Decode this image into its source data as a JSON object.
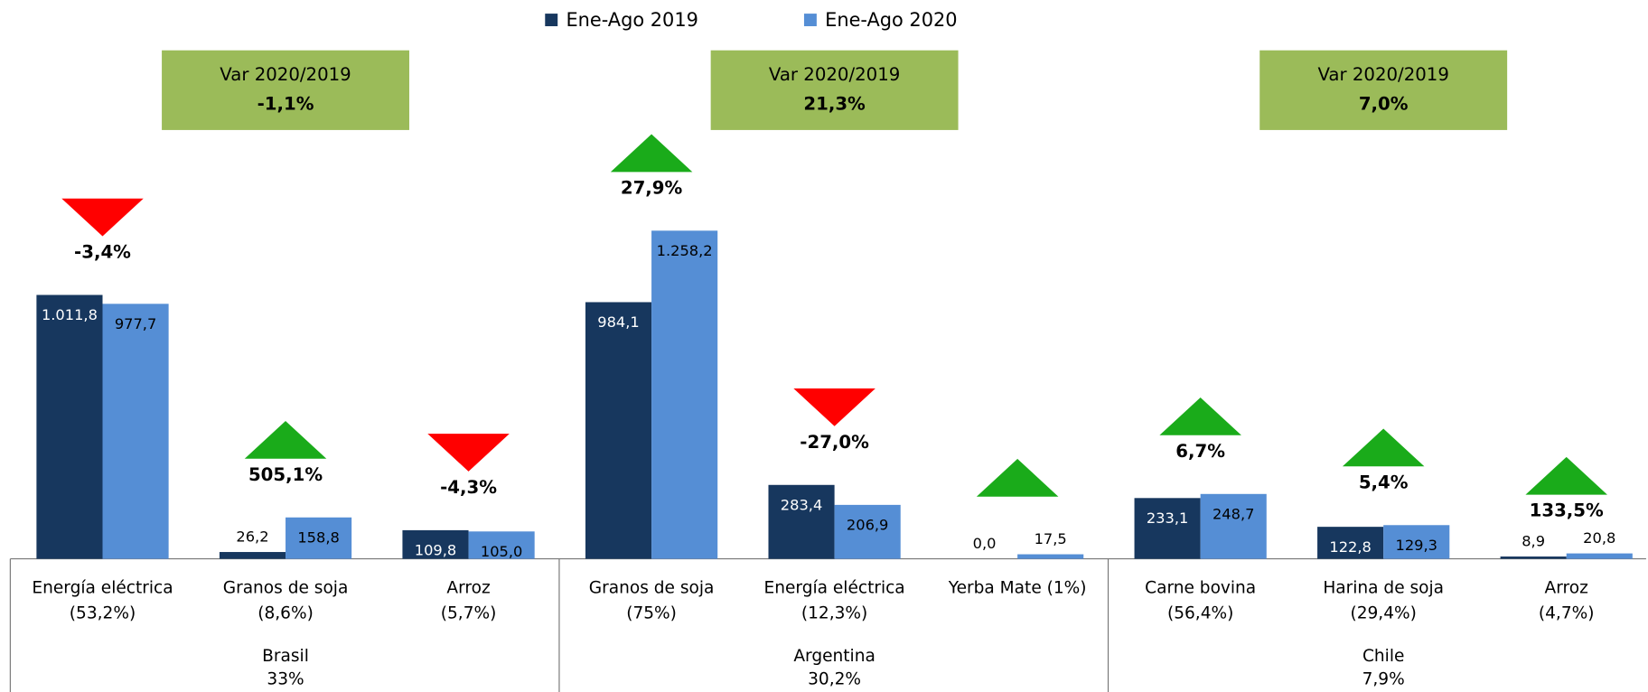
{
  "chart_data": {
    "type": "bar",
    "categories": [
      [
        "Energía eléctrica",
        "(53,2%)"
      ],
      [
        "Granos de soja",
        "(8,6%)"
      ],
      [
        "Arroz",
        "(5,7%)"
      ],
      [
        "Granos de soja",
        "(75%)"
      ],
      [
        "Energía eléctrica",
        "(12,3%)"
      ],
      [
        "Yerba Mate  (1%)"
      ],
      [
        "Carne bovina",
        "(56,4%)"
      ],
      [
        "Harina de soja",
        "(29,4%)"
      ],
      [
        "Arroz",
        "(4,7%)"
      ]
    ],
    "series": [
      {
        "name": "Ene-Ago 2019",
        "color": "#17375e",
        "values": [
          1011.8,
          26.2,
          109.8,
          984.1,
          283.4,
          0.0,
          233.1,
          122.8,
          8.9
        ],
        "value_labels": [
          "1.011,8",
          "26,2",
          "109,8",
          "984,1",
          "283,4",
          "0,0",
          "233,1",
          "122,8",
          "8,9"
        ]
      },
      {
        "name": "Ene-Ago 2020",
        "color": "#558ed5",
        "values": [
          977.7,
          158.8,
          105.0,
          1258.2,
          206.9,
          17.5,
          248.7,
          129.3,
          20.8
        ],
        "value_labels": [
          "977,7",
          "158,8",
          "105,0",
          "1.258,2",
          "206,9",
          "17,5",
          "248,7",
          "129,3",
          "20,8"
        ]
      }
    ],
    "variation": {
      "values": [
        -3.4,
        505.1,
        -4.3,
        27.9,
        -27.0,
        null,
        6.7,
        5.4,
        133.5
      ],
      "value_labels": [
        "-3,4%",
        "505,1%",
        "-4,3%",
        "27,9%",
        "-27,0%",
        null,
        "6,7%",
        "5,4%",
        "133,5%"
      ],
      "direction": [
        "down",
        "up",
        "down",
        "up",
        "down",
        "up",
        "up",
        "up",
        "up"
      ],
      "up_color": "#1aab1a",
      "down_color": "#ff0000"
    },
    "variation_title": "Var 2020/2019",
    "box_color": "#9bbb59",
    "groups": [
      {
        "name": "Brasil",
        "share": {
          "value": 33,
          "label": "33%"
        },
        "variation": {
          "value": -1.1,
          "label": "-1,1%"
        },
        "categories": [
          0,
          1,
          2
        ]
      },
      {
        "name": "Argentina",
        "share": {
          "value": 30.2,
          "label": "30,2%"
        },
        "variation": {
          "value": 21.3,
          "label": "21,3%"
        },
        "categories": [
          3,
          4,
          5
        ]
      },
      {
        "name": "Chile",
        "share": {
          "value": 7.9,
          "label": "7,9%"
        },
        "variation": {
          "value": 7.0,
          "label": "7,0%"
        },
        "categories": [
          6,
          7,
          8
        ]
      }
    ],
    "ylim": [
      0,
      1400
    ],
    "legend": "top"
  }
}
